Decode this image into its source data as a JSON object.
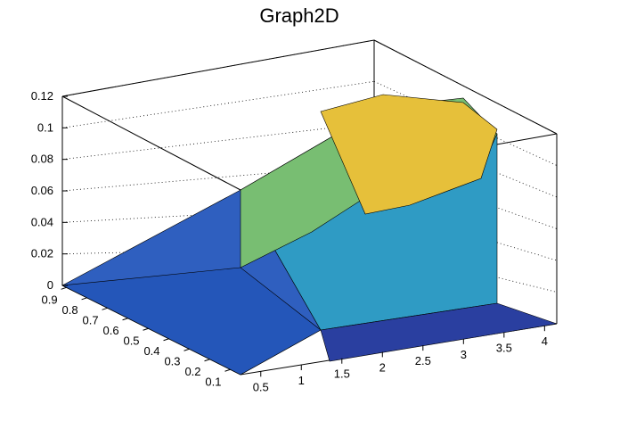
{
  "chart_data": {
    "type": "surface",
    "title": "Graph2D",
    "xlabel": "",
    "ylabel": "",
    "zlabel": "",
    "xlim": [
      0.25,
      4.15
    ],
    "ylim": [
      0.05,
      0.92
    ],
    "zlim": [
      0,
      0.12
    ],
    "x_ticks": [
      "0.5",
      "1",
      "1.5",
      "2",
      "2.5",
      "3",
      "3.5",
      "4"
    ],
    "y_ticks": [
      "0.1",
      "0.2",
      "0.3",
      "0.4",
      "0.5",
      "0.6",
      "0.7",
      "0.8",
      "0.9"
    ],
    "z_ticks": [
      "0",
      "0.02",
      "0.04",
      "0.06",
      "0.08",
      "0.1",
      "0.12"
    ],
    "z_gridlines": true,
    "palette": [
      "#352a87",
      "#1f5fd8",
      "#0f8ed3",
      "#18a8b8",
      "#4cb88a",
      "#9cbf5a",
      "#e0b83a",
      "#f9e11e"
    ],
    "surface_description_points": [
      {
        "x": 0.25,
        "y": 0.9,
        "z": 0.003
      },
      {
        "x": 1.0,
        "y": 0.9,
        "z": 0.06
      },
      {
        "x": 2.5,
        "y": 0.9,
        "z": 0.115
      },
      {
        "x": 3.6,
        "y": 0.9,
        "z": 0.108
      },
      {
        "x": 3.6,
        "y": 0.1,
        "z": 0.0
      },
      {
        "x": 0.25,
        "y": 0.1,
        "z": 0.0
      }
    ]
  }
}
